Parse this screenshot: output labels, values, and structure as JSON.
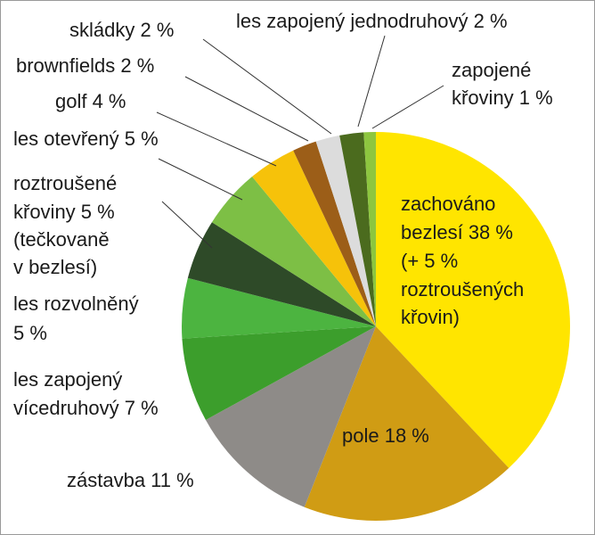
{
  "chart_data": {
    "type": "pie",
    "values": [
      38,
      18,
      11,
      7,
      5,
      5,
      5,
      4,
      2,
      2,
      2,
      1
    ],
    "colors": [
      "#ffe500",
      "#d09c14",
      "#8e8b88",
      "#3c9e2c",
      "#4cb440",
      "#2e4a28",
      "#7dbf45",
      "#f6c20a",
      "#9c5e18",
      "#dcdcdc",
      "#4b6b1e",
      "#8dc63f"
    ],
    "labels": [
      [
        "zachováno",
        "bezlesí 38 %",
        "(+ 5 %",
        "roztroušených",
        "křovin)"
      ],
      [
        "pole 18 %"
      ],
      [
        "zástavba 11 %"
      ],
      [
        "les zapojený",
        "vícedruhový 7 %"
      ],
      [
        "les rozvolněný",
        "5 %"
      ],
      [
        "roztroušené",
        "křoviny 5 %",
        "(tečkovaně",
        "v bezlesí)"
      ],
      [
        "les otevřený 5 %"
      ],
      [
        "golf 4 %"
      ],
      [
        "brownfields 2 %"
      ],
      [
        "skládky 2 %"
      ],
      [
        "les zapojený jednodruhový 2 %"
      ],
      [
        "zapojené",
        "křoviny 1 %"
      ]
    ]
  }
}
